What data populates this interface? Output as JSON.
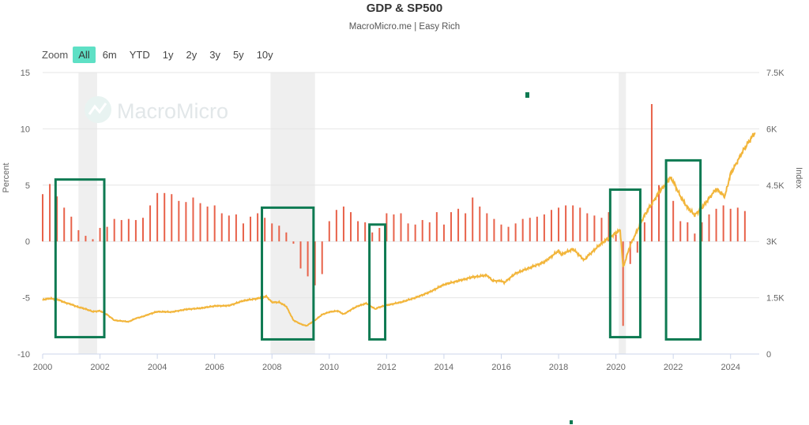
{
  "title": "GDP & SP500",
  "subtitle": "MacroMicro.me | Easy Rich",
  "watermark": "MacroMicro",
  "range_selector": {
    "label": "Zoom",
    "buttons": [
      "All",
      "6m",
      "YTD",
      "1y",
      "2y",
      "3y",
      "5y",
      "10y"
    ],
    "active": "All"
  },
  "colors": {
    "gdp_bars": "#e8624a",
    "sp500_line": "#f2b53a",
    "highlight_boxes": "#0e7a52",
    "recession_bands": "#efefef",
    "range_active": "#5ee0c5"
  },
  "chart_data": {
    "type": "bar+line",
    "title": "GDP & SP500",
    "subtitle": "MacroMicro.me | Easy Rich",
    "xlim": [
      2000,
      2025
    ],
    "x_ticks": [
      "2000",
      "2002",
      "2004",
      "2006",
      "2008",
      "2010",
      "2012",
      "2014",
      "2016",
      "2018",
      "2020",
      "2022",
      "2024"
    ],
    "left_axis": {
      "label": "Percent",
      "range": [
        -10,
        15
      ],
      "ticks": [
        "15",
        "10",
        "5",
        "0",
        "-5",
        "-10"
      ]
    },
    "right_axis": {
      "label": "Index",
      "range": [
        0,
        7500
      ],
      "ticks": [
        "7.5K",
        "6K",
        "4.5K",
        "3K",
        "1.5K",
        "0"
      ]
    },
    "recession_bands": [
      [
        2001.25,
        2001.9
      ],
      [
        2007.95,
        2009.5
      ],
      [
        2020.1,
        2020.35
      ]
    ],
    "highlight_boxes": [
      {
        "x": [
          2000.45,
          2002.15
        ],
        "y": [
          -8.5,
          5.5
        ]
      },
      {
        "x": [
          2007.65,
          2009.45
        ],
        "y": [
          -8.7,
          3.0
        ]
      },
      {
        "x": [
          2011.4,
          2011.95
        ],
        "y": [
          -8.7,
          1.5
        ]
      },
      {
        "x": [
          2019.8,
          2020.85
        ],
        "y": [
          -8.5,
          4.6
        ]
      },
      {
        "x": [
          2021.75,
          2022.95
        ],
        "y": [
          -8.7,
          7.2
        ]
      }
    ],
    "series": [
      {
        "name": "GDP",
        "kind": "bar",
        "axis": "left",
        "x": [
          2000.0,
          2000.25,
          2000.5,
          2000.75,
          2001.0,
          2001.25,
          2001.5,
          2001.75,
          2002.0,
          2002.25,
          2002.5,
          2002.75,
          2003.0,
          2003.25,
          2003.5,
          2003.75,
          2004.0,
          2004.25,
          2004.5,
          2004.75,
          2005.0,
          2005.25,
          2005.5,
          2005.75,
          2006.0,
          2006.25,
          2006.5,
          2006.75,
          2007.0,
          2007.25,
          2007.5,
          2007.75,
          2008.0,
          2008.25,
          2008.5,
          2008.75,
          2009.0,
          2009.25,
          2009.5,
          2009.75,
          2010.0,
          2010.25,
          2010.5,
          2010.75,
          2011.0,
          2011.25,
          2011.5,
          2011.75,
          2012.0,
          2012.25,
          2012.5,
          2012.75,
          2013.0,
          2013.25,
          2013.5,
          2013.75,
          2014.0,
          2014.25,
          2014.5,
          2014.75,
          2015.0,
          2015.25,
          2015.5,
          2015.75,
          2016.0,
          2016.25,
          2016.5,
          2016.75,
          2017.0,
          2017.25,
          2017.5,
          2017.75,
          2018.0,
          2018.25,
          2018.5,
          2018.75,
          2019.0,
          2019.25,
          2019.5,
          2019.75,
          2020.0,
          2020.25,
          2020.5,
          2020.75,
          2021.0,
          2021.25,
          2021.5,
          2021.75,
          2022.0,
          2022.25,
          2022.5,
          2022.75,
          2023.0,
          2023.25,
          2023.5,
          2023.75,
          2024.0,
          2024.25,
          2024.5
        ],
        "values": [
          4.2,
          5.1,
          4.0,
          3.0,
          2.2,
          1.0,
          0.5,
          0.2,
          1.2,
          1.3,
          2.0,
          1.9,
          2.0,
          1.9,
          2.1,
          3.2,
          4.3,
          4.3,
          4.2,
          3.6,
          3.5,
          3.9,
          3.4,
          3.1,
          3.2,
          2.5,
          2.3,
          2.4,
          1.6,
          2.2,
          2.5,
          2.1,
          1.6,
          1.4,
          0.8,
          -0.2,
          -2.4,
          -3.1,
          -3.9,
          -2.9,
          1.8,
          2.8,
          3.1,
          2.6,
          1.8,
          1.7,
          0.8,
          1.2,
          2.5,
          2.4,
          2.5,
          1.6,
          1.5,
          1.9,
          1.7,
          2.6,
          1.5,
          2.6,
          2.9,
          2.5,
          3.9,
          3.1,
          2.5,
          2.0,
          1.5,
          1.3,
          1.6,
          2.0,
          2.1,
          2.2,
          2.4,
          2.8,
          3.0,
          3.2,
          3.2,
          3.0,
          2.5,
          2.3,
          2.1,
          2.6,
          0.6,
          -7.5,
          -2.0,
          -1.0,
          1.7,
          12.2,
          5.0,
          5.5,
          3.6,
          1.8,
          1.7,
          0.7,
          1.7,
          2.4,
          2.9,
          3.2,
          2.9,
          3.0,
          2.7
        ]
      },
      {
        "name": "SP500",
        "kind": "line",
        "axis": "right",
        "x": [
          2000.0,
          2000.25,
          2000.5,
          2000.75,
          2001.0,
          2001.25,
          2001.5,
          2001.75,
          2002.0,
          2002.25,
          2002.5,
          2002.75,
          2003.0,
          2003.25,
          2003.5,
          2003.75,
          2004.0,
          2004.5,
          2005.0,
          2005.5,
          2006.0,
          2006.5,
          2007.0,
          2007.5,
          2007.8,
          2008.0,
          2008.25,
          2008.5,
          2008.75,
          2009.0,
          2009.2,
          2009.5,
          2009.75,
          2010.0,
          2010.3,
          2010.5,
          2010.8,
          2011.0,
          2011.3,
          2011.6,
          2011.75,
          2012.0,
          2012.5,
          2013.0,
          2013.5,
          2014.0,
          2014.5,
          2015.0,
          2015.5,
          2015.7,
          2016.0,
          2016.1,
          2016.5,
          2017.0,
          2017.5,
          2018.0,
          2018.1,
          2018.5,
          2018.9,
          2019.0,
          2019.5,
          2020.0,
          2020.15,
          2020.25,
          2020.5,
          2020.75,
          2021.0,
          2021.5,
          2021.9,
          2022.0,
          2022.25,
          2022.5,
          2022.75,
          2023.0,
          2023.5,
          2023.8,
          2024.0,
          2024.5,
          2024.85
        ],
        "values": [
          1450,
          1480,
          1460,
          1380,
          1320,
          1250,
          1200,
          1130,
          1150,
          1050,
          900,
          880,
          860,
          950,
          1000,
          1070,
          1130,
          1120,
          1190,
          1220,
          1280,
          1290,
          1420,
          1480,
          1540,
          1380,
          1380,
          1270,
          900,
          800,
          750,
          900,
          1050,
          1120,
          1150,
          1060,
          1200,
          1280,
          1350,
          1200,
          1250,
          1300,
          1380,
          1500,
          1650,
          1850,
          1950,
          2050,
          2100,
          1950,
          1950,
          1900,
          2150,
          2300,
          2450,
          2750,
          2650,
          2800,
          2500,
          2600,
          2950,
          3230,
          3300,
          2300,
          2900,
          3300,
          3700,
          4300,
          4700,
          4600,
          4200,
          3900,
          3700,
          3900,
          4400,
          4200,
          4800,
          5500,
          5900
        ]
      }
    ]
  }
}
